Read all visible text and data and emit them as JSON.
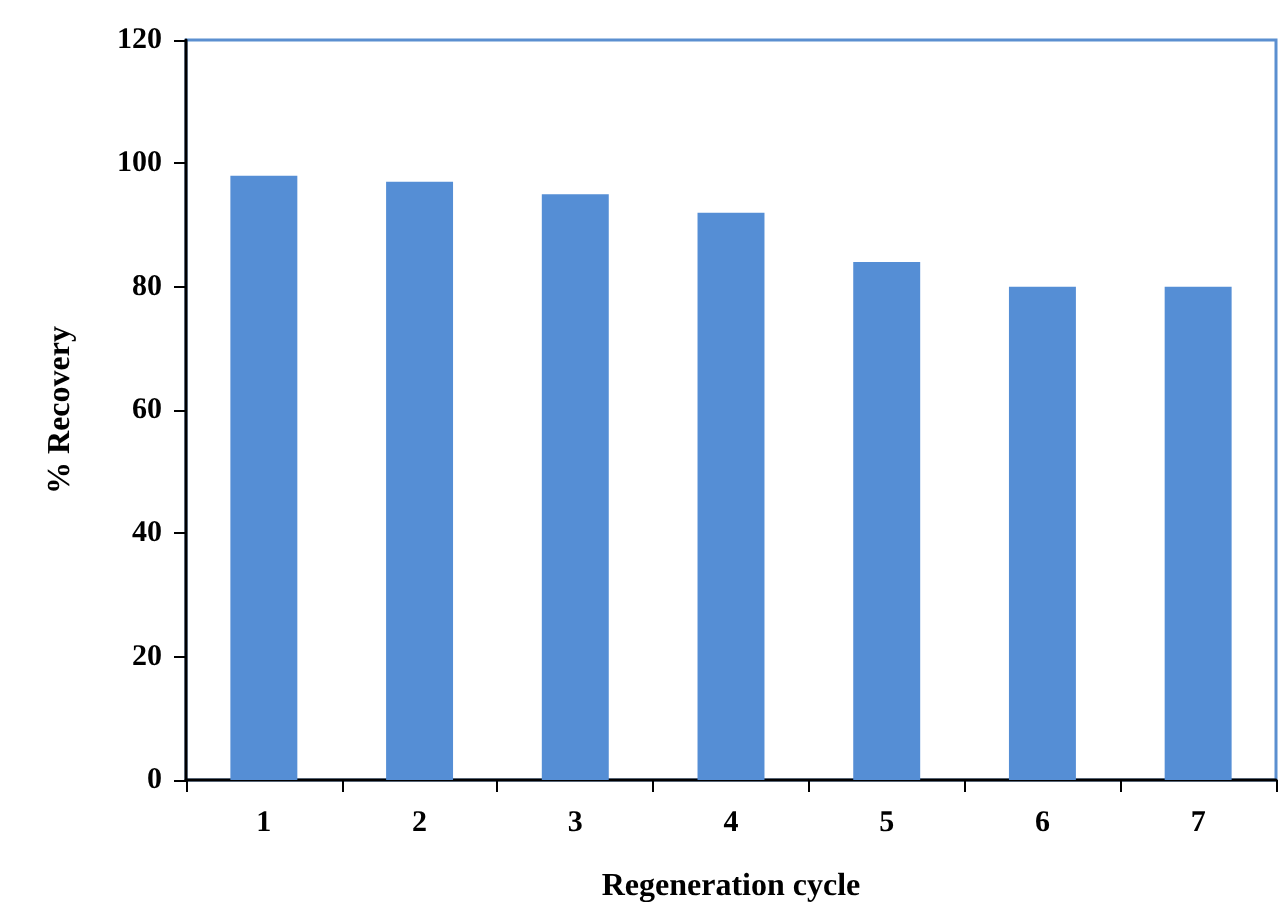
{
  "chart_data": {
    "type": "bar",
    "xlabel": "Regeneration cycle",
    "ylabel": "% Recovery",
    "categories": [
      "1",
      "2",
      "3",
      "4",
      "5",
      "6",
      "7"
    ],
    "values": [
      98,
      97,
      95,
      92,
      84,
      80,
      80
    ],
    "color": "#558ed5",
    "ylim": [
      0,
      120
    ],
    "yticks": [
      0,
      20,
      40,
      60,
      80,
      100,
      120
    ],
    "grid": false
  }
}
